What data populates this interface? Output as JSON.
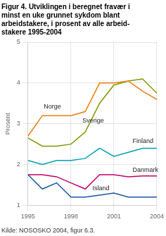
{
  "chart_data": {
    "type": "line",
    "title": "Figur 4. Utviklingen i beregnet fravær i\nminst en uke grunnet sykdom blant\narbeidstakere, i prosent av alle arbeid-\nstakere 1995-2004",
    "y_label": "Prosent",
    "source": "Kilde: NOSOSKO 2004, figur 6.3.",
    "x": [
      1995,
      1996,
      1997,
      1998,
      1999,
      2000,
      2001,
      2002,
      2003,
      2004
    ],
    "xlim": [
      1995,
      2004
    ],
    "xticks": [
      1995,
      1998,
      2001,
      2004
    ],
    "ylim": [
      1,
      5
    ],
    "yticks": [
      1,
      2,
      3,
      4,
      5
    ],
    "grid": true,
    "series": [
      {
        "name": "Norge",
        "color": "#e87e10",
        "values": [
          2.7,
          3.2,
          3.2,
          3.2,
          3.3,
          4.0,
          4.0,
          4.05,
          3.8,
          3.6
        ]
      },
      {
        "name": "Sverige",
        "color": "#7b9a00",
        "values": [
          2.65,
          2.45,
          2.45,
          2.5,
          2.8,
          3.5,
          3.95,
          4.05,
          4.1,
          3.75
        ]
      },
      {
        "name": "Finland",
        "color": "#00a0b0",
        "values": [
          2.1,
          2.0,
          2.1,
          2.1,
          2.15,
          2.4,
          2.2,
          2.3,
          2.4,
          2.4
        ]
      },
      {
        "name": "Danmark",
        "color": "#c0006a",
        "values": [
          1.75,
          1.75,
          1.7,
          1.55,
          1.4,
          1.75,
          1.75,
          1.7,
          1.72,
          1.72
        ]
      },
      {
        "name": "Island",
        "color": "#1a55a0",
        "values": [
          1.75,
          1.4,
          1.55,
          1.2,
          1.2,
          1.25,
          1.3,
          1.2,
          1.2,
          1.2
        ]
      }
    ],
    "annotations": [
      {
        "text": "Norge",
        "x": 1996.1,
        "y": 3.42
      },
      {
        "text": "Sverige",
        "x": 1998.8,
        "y": 3.08
      },
      {
        "text": "Finland",
        "x": 2002.3,
        "y": 2.57
      },
      {
        "text": "Danmark",
        "x": 2002.3,
        "y": 1.87
      },
      {
        "text": "Island",
        "x": 1999.5,
        "y": 1.42
      }
    ]
  }
}
